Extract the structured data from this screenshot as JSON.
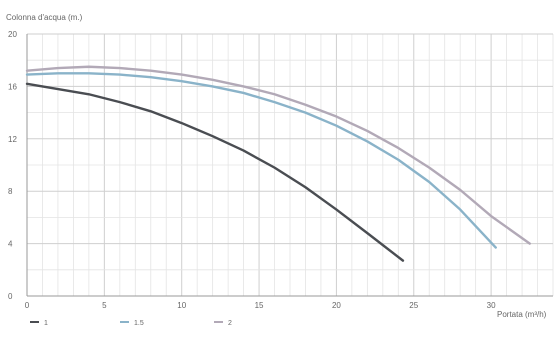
{
  "chart_data": {
    "type": "line",
    "title": "",
    "ylabel": "Colonna d'acqua (m.)",
    "xlabel": "Portata (m³/h)",
    "xlim": [
      0,
      34
    ],
    "ylim": [
      0,
      20
    ],
    "x_ticks": [
      0,
      5,
      10,
      15,
      20,
      25,
      30
    ],
    "x_tick_labels": [
      "0",
      "5",
      "10",
      "15",
      "20",
      "25",
      "30"
    ],
    "y_ticks": [
      0,
      4,
      8,
      12,
      16,
      20
    ],
    "y_tick_labels": [
      "0",
      "4",
      "8",
      "12",
      "16",
      "20"
    ],
    "grid": true,
    "legend_position": "bottom-left",
    "series": [
      {
        "name": "1",
        "color": "#4a4d52",
        "x": [
          0,
          2,
          4,
          6,
          8,
          10,
          12,
          14,
          16,
          18,
          20,
          22,
          24.3
        ],
        "y": [
          16.2,
          15.8,
          15.4,
          14.8,
          14.1,
          13.2,
          12.2,
          11.1,
          9.8,
          8.3,
          6.6,
          4.8,
          2.7
        ]
      },
      {
        "name": "1.5",
        "color": "#8ab3c9",
        "x": [
          0,
          2,
          4,
          6,
          8,
          10,
          12,
          14,
          16,
          18,
          20,
          22,
          24,
          26,
          28,
          30.3
        ],
        "y": [
          16.9,
          17.0,
          17.0,
          16.9,
          16.7,
          16.4,
          16.0,
          15.5,
          14.8,
          14.0,
          13.0,
          11.8,
          10.4,
          8.7,
          6.6,
          3.7
        ]
      },
      {
        "name": "2",
        "color": "#b2a9b7",
        "x": [
          0,
          2,
          4,
          6,
          8,
          10,
          12,
          14,
          16,
          18,
          20,
          22,
          24,
          26,
          28,
          30,
          32.5
        ],
        "y": [
          17.2,
          17.4,
          17.5,
          17.4,
          17.2,
          16.9,
          16.5,
          16.0,
          15.4,
          14.6,
          13.7,
          12.6,
          11.3,
          9.8,
          8.1,
          6.1,
          4.0
        ]
      }
    ]
  }
}
